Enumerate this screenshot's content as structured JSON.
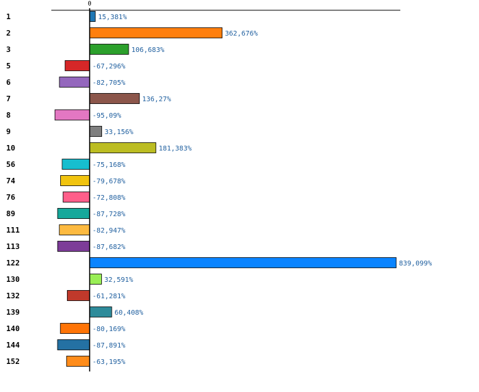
{
  "chart_data": {
    "type": "bar",
    "orientation": "horizontal",
    "title": "",
    "xlabel": "",
    "ylabel": "",
    "x_ticks": [
      "0"
    ],
    "xlim": [
      -100,
      839.099
    ],
    "grid": false,
    "legend": "none",
    "value_suffix": "%",
    "categories": [
      "1",
      "2",
      "3",
      "5",
      "6",
      "7",
      "8",
      "9",
      "10",
      "56",
      "74",
      "76",
      "89",
      "111",
      "113",
      "122",
      "130",
      "132",
      "139",
      "140",
      "144",
      "152"
    ],
    "values": [
      15.381,
      362.676,
      106.683,
      -67.296,
      -82.705,
      136.27,
      -95.09,
      33.156,
      181.383,
      -75.168,
      -79.678,
      -72.808,
      -87.728,
      -82.947,
      -87.682,
      839.099,
      32.591,
      -61.281,
      60.408,
      -80.169,
      -87.891,
      -63.195
    ],
    "value_labels": [
      "15,381%",
      "362,676%",
      "106,683%",
      "-67,296%",
      "-82,705%",
      "136,27%",
      "-95,09%",
      "33,156%",
      "181,383%",
      "-75,168%",
      "-79,678%",
      "-72,808%",
      "-87,728%",
      "-82,947%",
      "-87,682%",
      "839,099%",
      "32,591%",
      "-61,281%",
      "60,408%",
      "-80,169%",
      "-87,891%",
      "-63,195%"
    ],
    "colors": [
      "#1f77b4",
      "#ff7f0e",
      "#2ca02c",
      "#d62728",
      "#9467bd",
      "#8c564b",
      "#e377c2",
      "#7f7f7f",
      "#bcbd22",
      "#17becf",
      "#f1c40f",
      "#ff5e8a",
      "#16a89b",
      "#fdba40",
      "#7d3c98",
      "#0a84ff",
      "#99ee55",
      "#c0392b",
      "#2e8b9a",
      "#ff7406",
      "#2471a3",
      "#ff8c1a"
    ]
  }
}
